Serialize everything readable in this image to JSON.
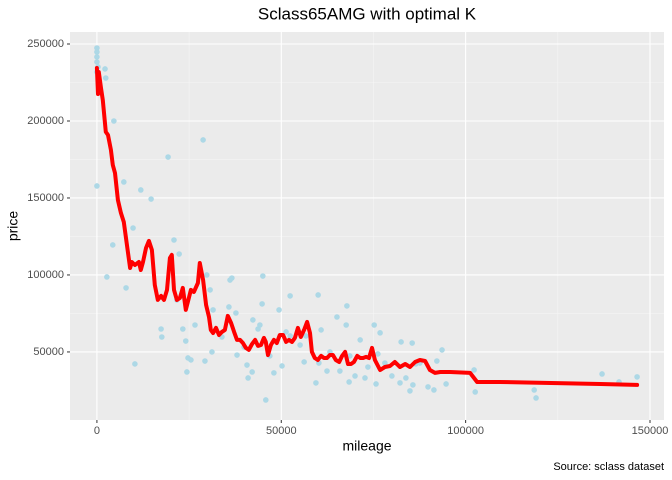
{
  "chart_data": {
    "type": "scatter",
    "title": "Sclass65AMG with optimal K",
    "x_label": "mileage",
    "y_label": "price",
    "caption": "Source: sclass dataset",
    "xlim": [
      -7300,
      153800
    ],
    "ylim": [
      5800,
      257800
    ],
    "xticks": [
      0,
      50000,
      100000,
      150000
    ],
    "yticks": [
      50000,
      100000,
      150000,
      200000,
      250000
    ],
    "grid": true,
    "minor_grid": true,
    "points": {
      "color": "#add8e6",
      "x": [
        0,
        0,
        0,
        0,
        300,
        0,
        0,
        500,
        2200,
        2400,
        2700,
        4600,
        4300,
        7900,
        7300,
        10300,
        9800,
        11900,
        14700,
        19300,
        28800,
        17400,
        17600,
        20900,
        22300,
        21700,
        23300,
        24100,
        24700,
        24400,
        29300,
        31200,
        33900,
        36100,
        36600,
        35800,
        38000,
        40700,
        41000,
        43700,
        45000,
        44800,
        45800,
        46900,
        48000,
        49400,
        52400,
        52400,
        56200,
        56700,
        60000,
        60200,
        59400,
        62400,
        65100,
        65900,
        67800,
        68600,
        68400,
        72700,
        75200,
        75700,
        76200,
        78100,
        80000,
        82200,
        82500,
        83800,
        84900,
        85700,
        86500,
        87600,
        89800,
        91400,
        92200,
        93600,
        94700,
        102300,
        102600,
        118600,
        119100,
        137000,
        141600,
        146500,
        29800,
        30700,
        37700,
        39900,
        42300,
        44200,
        51300,
        55100,
        60800,
        67600,
        71400,
        73500,
        76800,
        85500,
        25500,
        31500,
        26600,
        42100,
        50200,
        63200,
        70000
      ],
      "y": [
        247400,
        244800,
        241600,
        238300,
        235100,
        231800,
        157800,
        225300,
        233800,
        227900,
        98700,
        200000,
        119500,
        91600,
        160400,
        42200,
        130500,
        155200,
        149300,
        176600,
        187700,
        64900,
        59700,
        122700,
        113600,
        83800,
        64900,
        57100,
        46100,
        37000,
        44100,
        50000,
        59700,
        96700,
        98000,
        79200,
        48000,
        41500,
        33100,
        64900,
        99300,
        81200,
        18800,
        47400,
        36400,
        77300,
        86400,
        60400,
        43500,
        60400,
        87000,
        42800,
        29900,
        37600,
        72700,
        37600,
        79900,
        47400,
        30500,
        33100,
        67500,
        29200,
        48700,
        42800,
        34400,
        29900,
        56500,
        33100,
        24700,
        28600,
        42200,
        42800,
        27300,
        25300,
        44100,
        51300,
        29200,
        38300,
        24000,
        25300,
        20100,
        35700,
        30500,
        33800,
        100000,
        90300,
        75300,
        53200,
        70800,
        67500,
        63000,
        54500,
        64300,
        67500,
        57800,
        40200,
        62400,
        55800,
        44800,
        77300,
        67500,
        37000,
        40900,
        50000,
        34400
      ]
    },
    "fit": {
      "color": "#ff0000",
      "x": [
        0,
        300,
        500,
        1100,
        1600,
        2400,
        3000,
        3800,
        4300,
        4900,
        5700,
        6500,
        7300,
        8100,
        9000,
        9500,
        10300,
        11400,
        11900,
        12500,
        13300,
        14100,
        14900,
        15700,
        16500,
        17400,
        18200,
        19000,
        19800,
        20300,
        20900,
        21700,
        22500,
        23300,
        24100,
        25000,
        25500,
        26300,
        27400,
        27900,
        28800,
        29600,
        30400,
        30900,
        31500,
        32300,
        33100,
        33900,
        34700,
        35500,
        36400,
        37200,
        38000,
        38800,
        39600,
        40400,
        41200,
        42100,
        42900,
        43700,
        44500,
        45300,
        45800,
        46400,
        47200,
        48000,
        48800,
        49600,
        50500,
        51300,
        52100,
        52900,
        53700,
        54500,
        55300,
        56200,
        57000,
        57800,
        58300,
        59100,
        59900,
        60800,
        61600,
        62400,
        63200,
        64000,
        64800,
        65700,
        66500,
        67300,
        68100,
        68900,
        69700,
        70600,
        71400,
        72200,
        73000,
        73800,
        74600,
        75400,
        76800,
        78100,
        79500,
        80800,
        82200,
        83600,
        84900,
        86300,
        87600,
        89000,
        90300,
        91700,
        93100,
        95800,
        101200,
        103100,
        109300,
        136500,
        146500
      ],
      "y": [
        234400,
        217500,
        231800,
        221400,
        213600,
        192900,
        190900,
        181200,
        171400,
        166200,
        148700,
        140300,
        134400,
        120100,
        104500,
        108400,
        106500,
        108400,
        103200,
        108400,
        117500,
        122100,
        116200,
        93500,
        83800,
        86400,
        83800,
        90300,
        111000,
        113000,
        90300,
        83800,
        85100,
        91600,
        77300,
        85700,
        90300,
        89000,
        94800,
        107800,
        96700,
        80500,
        72700,
        64300,
        62300,
        65600,
        61000,
        63000,
        64300,
        73400,
        68800,
        63000,
        57800,
        57800,
        55800,
        52600,
        51300,
        55200,
        57800,
        53900,
        54500,
        59100,
        56500,
        48000,
        54500,
        57800,
        55800,
        61000,
        61000,
        56500,
        57800,
        56500,
        59100,
        65600,
        59700,
        64300,
        69500,
        62300,
        50000,
        46100,
        44800,
        47400,
        46100,
        46100,
        48000,
        48000,
        44800,
        43500,
        47400,
        50000,
        42200,
        42200,
        43500,
        47400,
        46100,
        46100,
        46800,
        46100,
        52600,
        44800,
        38300,
        40200,
        40900,
        43500,
        40200,
        42200,
        40200,
        43500,
        44800,
        44100,
        38300,
        36400,
        37000,
        37000,
        36400,
        30500,
        30500,
        29200,
        28600
      ]
    }
  }
}
